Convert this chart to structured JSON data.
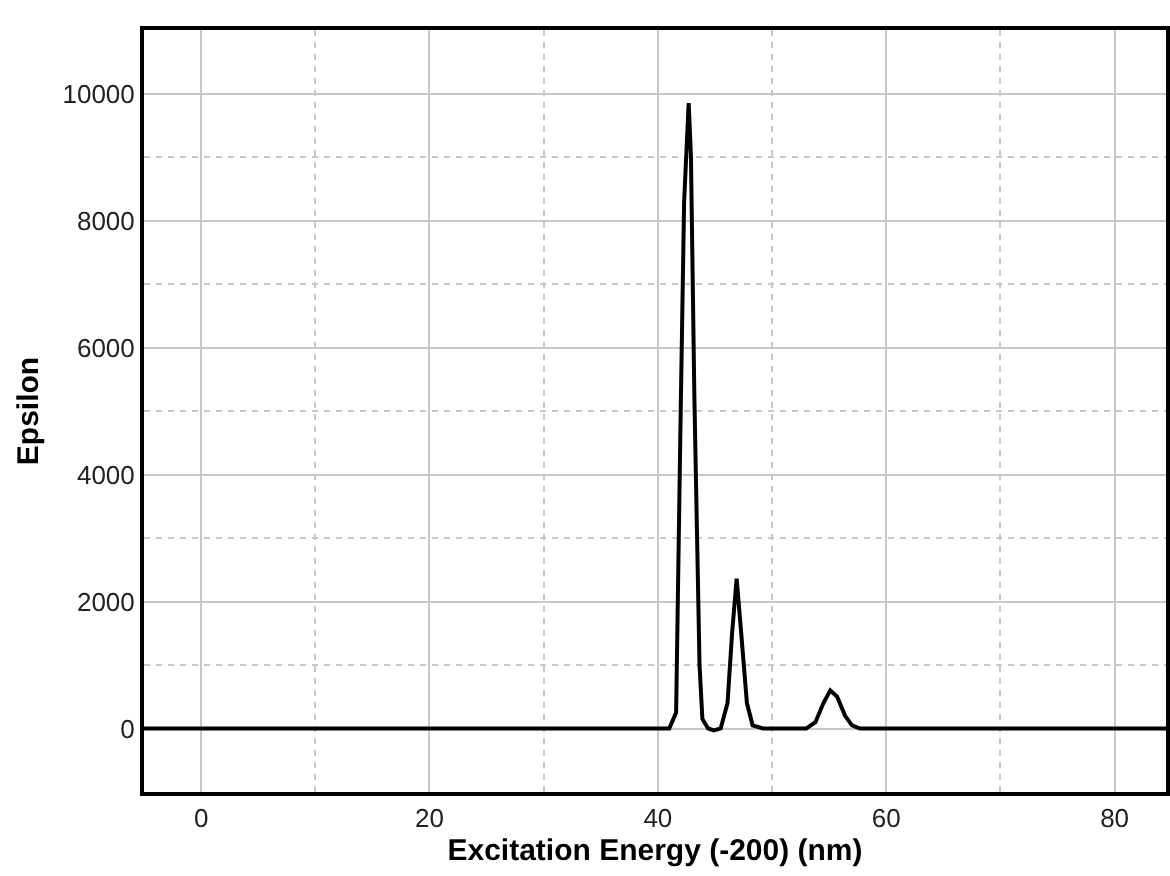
{
  "chart_data": {
    "type": "line",
    "xlabel": "Excitation Energy (-200) (nm)",
    "ylabel": "Epsilon",
    "x": [
      -5,
      41.0,
      41.6,
      42.0,
      42.3,
      42.7,
      42.9,
      43.2,
      43.65,
      43.9,
      44.4,
      44.9,
      45.5,
      46.1,
      46.5,
      46.9,
      47.3,
      47.8,
      48.3,
      49.2,
      53.0,
      53.8,
      54.5,
      55.1,
      55.7,
      56.4,
      57.0,
      57.7,
      84.5
    ],
    "series": [
      {
        "color": "#000000",
        "values": [
          0,
          0,
          250,
          5000,
          8300,
          9850,
          9000,
          5200,
          1000,
          150,
          0,
          -30,
          0,
          400,
          1500,
          2360,
          1500,
          400,
          50,
          0,
          0,
          100,
          400,
          600,
          500,
          200,
          50,
          0,
          0
        ]
      }
    ],
    "xlim": [
      -5,
      84.5
    ],
    "ylim": [
      -1000,
      11000
    ],
    "xticks": [
      0,
      20,
      40,
      60,
      80
    ],
    "yticks": [
      0,
      2000,
      4000,
      6000,
      8000,
      10000
    ],
    "grid": true,
    "legend": false,
    "marker": "none",
    "line_style": "solid"
  }
}
